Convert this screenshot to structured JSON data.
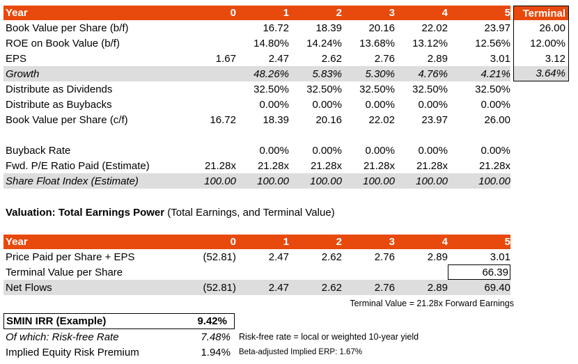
{
  "colors": {
    "accent_orange": "#E8490D",
    "band_gray": "#DDDDDD",
    "border_black": "#000000"
  },
  "table1": {
    "header": {
      "label": "Year",
      "cols": [
        "0",
        "1",
        "2",
        "3",
        "4",
        "5"
      ],
      "terminal": "Terminal"
    },
    "rows": [
      {
        "label": "Book Value per Share (b/f)",
        "values": [
          "",
          "16.72",
          "18.39",
          "20.16",
          "22.02",
          "23.97"
        ],
        "terminal": "26.00"
      },
      {
        "label": "ROE on Book Value (b/f)",
        "values": [
          "",
          "14.80%",
          "14.24%",
          "13.68%",
          "13.12%",
          "12.56%"
        ],
        "terminal": "12.00%"
      },
      {
        "label": "EPS",
        "values": [
          "1.67",
          "2.47",
          "2.62",
          "2.76",
          "2.89",
          "3.01"
        ],
        "terminal": "3.12"
      },
      {
        "label": "Growth",
        "values": [
          "",
          "48.26%",
          "5.83%",
          "5.30%",
          "4.76%",
          "4.21%"
        ],
        "terminal": "3.64%"
      },
      {
        "label": "Distribute as Dividends",
        "values": [
          "",
          "32.50%",
          "32.50%",
          "32.50%",
          "32.50%",
          "32.50%"
        ],
        "terminal": ""
      },
      {
        "label": "Distribute as Buybacks",
        "values": [
          "",
          "0.00%",
          "0.00%",
          "0.00%",
          "0.00%",
          "0.00%"
        ],
        "terminal": ""
      },
      {
        "label": "Book Value per Share (c/f)",
        "values": [
          "16.72",
          "18.39",
          "20.16",
          "22.02",
          "23.97",
          "26.00"
        ],
        "terminal": ""
      },
      {
        "label": "",
        "values": [
          "",
          "",
          "",
          "",
          "",
          ""
        ],
        "terminal": ""
      },
      {
        "label": "Buyback Rate",
        "values": [
          "",
          "0.00%",
          "0.00%",
          "0.00%",
          "0.00%",
          "0.00%"
        ],
        "terminal": ""
      },
      {
        "label": "Fwd. P/E Ratio Paid (Estimate)",
        "values": [
          "21.28x",
          "21.28x",
          "21.28x",
          "21.28x",
          "21.28x",
          "21.28x"
        ],
        "terminal": ""
      },
      {
        "label": "Share Float Index (Estimate)",
        "values": [
          "100.00",
          "100.00",
          "100.00",
          "100.00",
          "100.00",
          "100.00"
        ],
        "terminal": ""
      }
    ]
  },
  "section_title": {
    "bold": "Valuation: Total Earnings Power",
    "rest": " (Total Earnings, and Terminal Value)"
  },
  "table2": {
    "header": {
      "label": "Year",
      "cols": [
        "0",
        "1",
        "2",
        "3",
        "4",
        "5"
      ]
    },
    "rows": [
      {
        "label": "Price Paid per Share + EPS",
        "values": [
          "(52.81)",
          "2.47",
          "2.62",
          "2.76",
          "2.89",
          "3.01"
        ]
      },
      {
        "label": "Terminal Value per Share",
        "values": [
          "",
          "",
          "",
          "",
          "",
          "66.39"
        ]
      },
      {
        "label": "Net Flows",
        "values": [
          "(52.81)",
          "2.47",
          "2.62",
          "2.76",
          "2.89",
          "69.40"
        ]
      }
    ],
    "footnote": "Terminal Value = 21.28x Forward Earnings"
  },
  "summary": {
    "irr": {
      "label": "SMIN IRR (Example)",
      "value": "9.42%"
    },
    "risk_free": {
      "label": "Of which: Risk-free Rate",
      "value": "7.48%",
      "note": "Risk-free rate = local or weighted 10-year yield"
    },
    "erp": {
      "label": "Implied Equity Risk Premium",
      "value": "1.94%",
      "note": "Beta-adjusted Implied ERP: 1.67%"
    }
  }
}
